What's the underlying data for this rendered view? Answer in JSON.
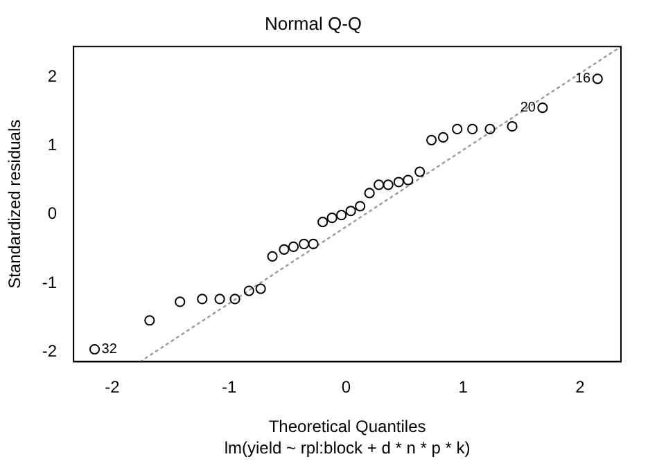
{
  "chart_data": {
    "type": "scatter",
    "title": "Normal Q-Q",
    "xlabel": "Theoretical Quantiles",
    "ylabel": "Standardized residuals",
    "xlim": [
      -2.33,
      2.35
    ],
    "ylim": [
      -2.14,
      2.44
    ],
    "xticks": [
      -2,
      -1,
      0,
      1,
      2
    ],
    "yticks": [
      -2,
      -1,
      0,
      1,
      2
    ],
    "grid": false,
    "legend": false,
    "marker": "circle",
    "series": [
      {
        "color": "#000000",
        "x": [
          -2.15,
          -1.68,
          -1.42,
          -1.23,
          -1.08,
          -0.95,
          -0.83,
          -0.73,
          -0.63,
          -0.53,
          -0.45,
          -0.36,
          -0.28,
          -0.2,
          -0.12,
          -0.04,
          0.04,
          0.12,
          0.2,
          0.28,
          0.36,
          0.45,
          0.53,
          0.63,
          0.73,
          0.83,
          0.95,
          1.08,
          1.23,
          1.42,
          1.68,
          2.15
        ],
        "values": [
          -1.96,
          -1.54,
          -1.27,
          -1.23,
          -1.23,
          -1.23,
          -1.11,
          -1.08,
          -0.61,
          -0.51,
          -0.47,
          -0.43,
          -0.43,
          -0.11,
          -0.05,
          -0.01,
          0.05,
          0.12,
          0.31,
          0.43,
          0.43,
          0.47,
          0.5,
          0.62,
          1.08,
          1.12,
          1.24,
          1.24,
          1.24,
          1.28,
          1.55,
          1.97
        ]
      },
      {
        "type": "line",
        "color": "#999999",
        "line_style": "dotted",
        "marker": "none",
        "x": [
          -1.76,
          2.35
        ],
        "values": [
          -2.14,
          2.44
        ]
      }
    ],
    "annotations": [
      {
        "text": "32",
        "x": -2.15,
        "y": -1.96
      },
      {
        "text": "20",
        "x": 1.68,
        "y": 1.55
      },
      {
        "text": "16",
        "x": 2.15,
        "y": 1.97
      },
      "lm(yield ~ rpl:block + d * n * p * k)"
    ]
  }
}
